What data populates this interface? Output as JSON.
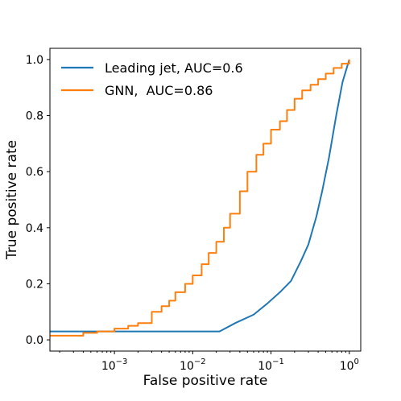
{
  "chart_data": {
    "type": "line",
    "xlabel": "False positive rate",
    "ylabel": "True positive rate",
    "xscale": "log",
    "xlim": [
      0.00015,
      1.4
    ],
    "ylim": [
      -0.04,
      1.04
    ],
    "grid": false,
    "legend_position": "top-left",
    "x_tick_labels": [
      {
        "base": "10",
        "exp": "−3",
        "value": 0.001
      },
      {
        "base": "10",
        "exp": "−2",
        "value": 0.01
      },
      {
        "base": "10",
        "exp": "−1",
        "value": 0.1
      },
      {
        "base": "10",
        "exp": "0",
        "value": 1
      }
    ],
    "y_tick_labels": [
      "0.0",
      "0.2",
      "0.4",
      "0.6",
      "0.8",
      "1.0"
    ],
    "y_tick_values": [
      0.0,
      0.2,
      0.4,
      0.6,
      0.8,
      1.0
    ],
    "series": [
      {
        "name": "Leading jet, AUC=0.6",
        "color": "#1f77b4",
        "step": false,
        "x": [
          0.00015,
          0.0004,
          0.001,
          0.005,
          0.022,
          0.035,
          0.06,
          0.09,
          0.13,
          0.18,
          0.24,
          0.3,
          0.38,
          0.45,
          0.55,
          0.68,
          0.82,
          1.0
        ],
        "y": [
          0.03,
          0.03,
          0.03,
          0.03,
          0.03,
          0.06,
          0.09,
          0.13,
          0.17,
          0.21,
          0.28,
          0.34,
          0.44,
          0.53,
          0.65,
          0.8,
          0.92,
          1.0
        ]
      },
      {
        "name": "GNN,  AUC=0.86",
        "color": "#ff7f0e",
        "step": true,
        "x": [
          0.00015,
          0.0004,
          0.0006,
          0.001,
          0.0015,
          0.002,
          0.003,
          0.004,
          0.005,
          0.006,
          0.008,
          0.01,
          0.013,
          0.016,
          0.02,
          0.025,
          0.03,
          0.04,
          0.05,
          0.065,
          0.08,
          0.1,
          0.13,
          0.16,
          0.2,
          0.25,
          0.32,
          0.4,
          0.5,
          0.63,
          0.8,
          1.0
        ],
        "y": [
          0.015,
          0.025,
          0.03,
          0.04,
          0.05,
          0.06,
          0.1,
          0.12,
          0.14,
          0.17,
          0.2,
          0.23,
          0.27,
          0.31,
          0.35,
          0.4,
          0.45,
          0.53,
          0.6,
          0.66,
          0.7,
          0.75,
          0.78,
          0.82,
          0.86,
          0.89,
          0.91,
          0.93,
          0.95,
          0.97,
          0.985,
          1.0
        ]
      }
    ]
  }
}
